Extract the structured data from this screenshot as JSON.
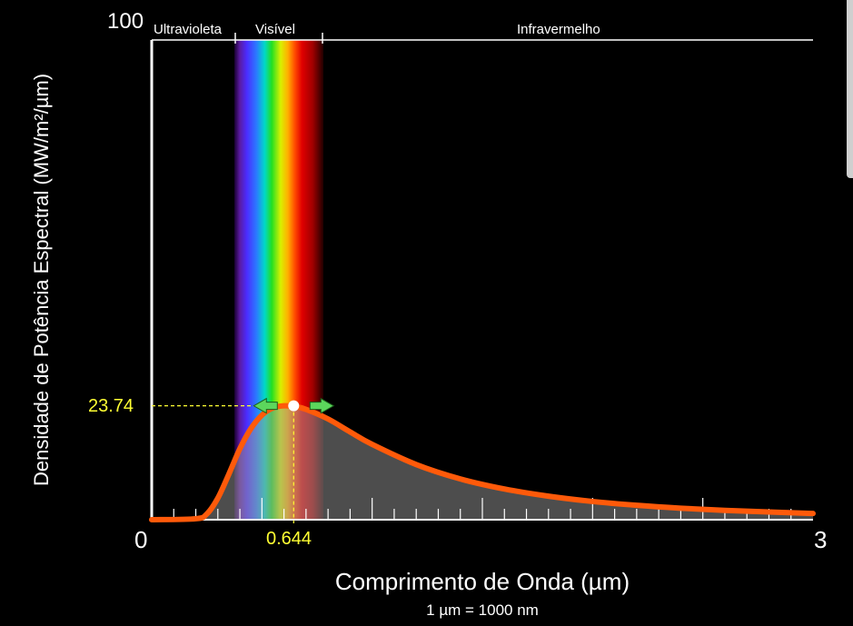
{
  "axes": {
    "y_axis_label": "Densidade de Potência Espectral (MW/m²/µm)",
    "x_axis_label": "Comprimento de Onda (µm)",
    "unit_note": "1 µm  =  1000 nm",
    "y_max_label": "100",
    "x_min_label": "0",
    "x_max_label": "3"
  },
  "regions": {
    "uv_label": "Ultravioleta",
    "visible_label": "Visível",
    "ir_label": "Infravermelho"
  },
  "peak": {
    "value_label": "23.74",
    "wavelength_label": "0.644"
  },
  "colors": {
    "curve": "#ff5a0a",
    "readout": "#ffff33",
    "arrow": "#5cd65c"
  },
  "chart_data": {
    "type": "line",
    "xlim": [
      0,
      3
    ],
    "ylim": [
      0,
      100
    ],
    "peak": {
      "x": 0.644,
      "y": 23.74
    },
    "series": [
      {
        "x": [
          0.2,
          0.25,
          0.3,
          0.35,
          0.4,
          0.45,
          0.5,
          0.55,
          0.6,
          0.65,
          0.7,
          0.8,
          0.9,
          1.0,
          1.2,
          1.4,
          1.6,
          1.8,
          2.0,
          2.2,
          2.4,
          2.6,
          2.8,
          3.0
        ],
        "values": [
          0.2,
          1.2,
          4.5,
          9.5,
          14.8,
          19.0,
          21.8,
          23.3,
          23.74,
          23.6,
          23.0,
          21.0,
          18.3,
          15.7,
          11.5,
          8.5,
          6.4,
          4.9,
          3.8,
          3.0,
          2.4,
          1.95,
          1.6,
          1.3
        ]
      }
    ]
  }
}
